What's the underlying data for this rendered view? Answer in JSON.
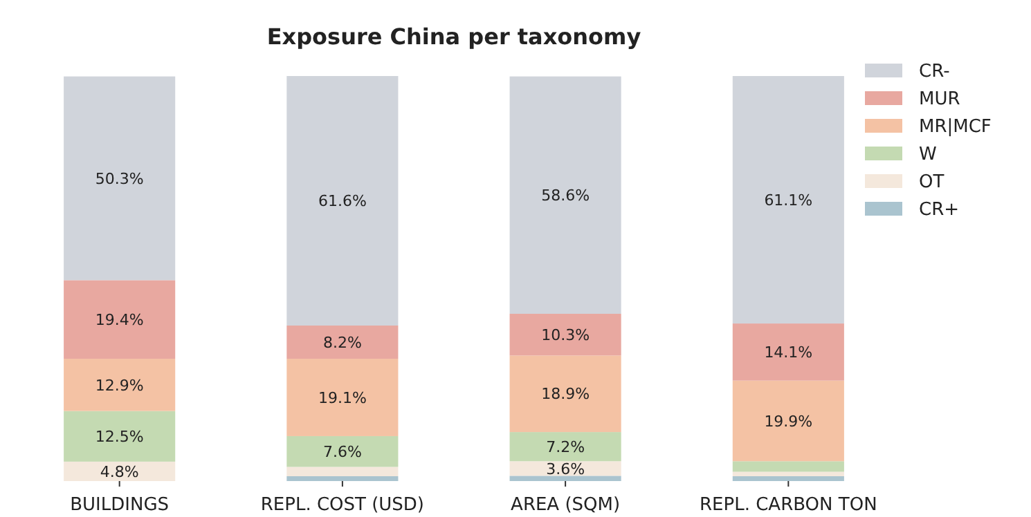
{
  "chart_data": {
    "type": "bar",
    "title": "Exposure China per taxonomy",
    "stacked": true,
    "legend": "top right",
    "categories": [
      "BUILDINGS",
      "REPL. COST (USD)",
      "AREA (SQM)",
      "REPL. CARBON TON"
    ],
    "series": [
      {
        "name": "CR+",
        "color": "#aac4cf",
        "values": [
          0,
          1.2,
          1.3,
          1.2
        ],
        "value_labels": [
          null,
          null,
          null,
          null
        ]
      },
      {
        "name": "OT",
        "color": "#f4e8dc",
        "values": [
          4.8,
          2.3,
          3.6,
          1.1
        ],
        "value_labels": [
          "4.8%",
          null,
          "3.6%",
          null
        ]
      },
      {
        "name": "W",
        "color": "#c4dab2",
        "values": [
          12.5,
          7.6,
          7.2,
          2.6
        ],
        "value_labels": [
          "12.5%",
          "7.6%",
          "7.2%",
          null
        ]
      },
      {
        "name": "MR|MCF",
        "color": "#f4c2a4",
        "values": [
          12.9,
          19.1,
          18.9,
          19.9
        ],
        "value_labels": [
          "12.9%",
          "19.1%",
          "18.9%",
          "19.9%"
        ]
      },
      {
        "name": "MUR",
        "color": "#e8a8a0",
        "values": [
          19.4,
          8.2,
          10.3,
          14.1
        ],
        "value_labels": [
          "19.4%",
          "8.2%",
          "10.3%",
          "14.1%"
        ]
      },
      {
        "name": "CR-",
        "color": "#d0d4db",
        "values": [
          50.3,
          61.6,
          58.6,
          61.1
        ],
        "value_labels": [
          "50.3%",
          "61.6%",
          "58.6%",
          "61.1%"
        ]
      }
    ]
  }
}
